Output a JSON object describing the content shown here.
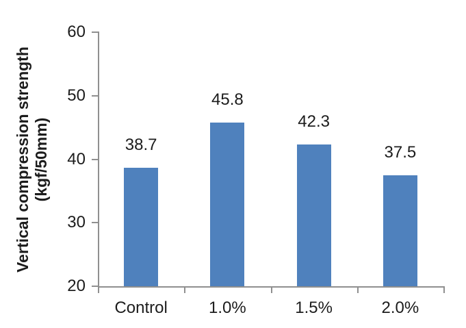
{
  "chart_data": {
    "type": "bar",
    "categories": [
      "Control",
      "1.0%",
      "1.5%",
      "2.0%"
    ],
    "values": [
      38.7,
      45.8,
      42.3,
      37.5
    ],
    "data_labels": [
      "38.7",
      "45.8",
      "42.3",
      "37.5"
    ],
    "title": "",
    "xlabel": "",
    "ylabel": "Vertical compression strength (kgf/50mm)",
    "ylabel_lines": [
      "Vertical compression strength",
      "(kgf/50mm)"
    ],
    "ylim": [
      20,
      60
    ],
    "yticks": [
      20,
      30,
      40,
      50,
      60
    ],
    "ytick_labels": [
      "20",
      "30",
      "40",
      "50",
      "60"
    ],
    "grid": false,
    "legend": "none",
    "colors": {
      "bar": "#4f81bd",
      "axis": "#8f8f8f",
      "text": "#1c1c1c"
    }
  }
}
